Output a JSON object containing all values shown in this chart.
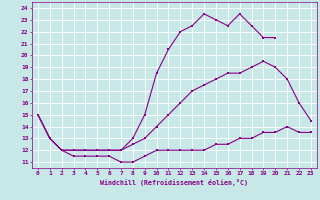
{
  "xlabel": "Windchill (Refroidissement éolien,°C)",
  "bg_color": "#c8e8e8",
  "grid_color": "#aacccc",
  "line_color": "#880088",
  "xlim": [
    -0.5,
    23.5
  ],
  "ylim": [
    10.5,
    24.5
  ],
  "xticks": [
    0,
    1,
    2,
    3,
    4,
    5,
    6,
    7,
    8,
    9,
    10,
    11,
    12,
    13,
    14,
    15,
    16,
    17,
    18,
    19,
    20,
    21,
    22,
    23
  ],
  "yticks": [
    11,
    12,
    13,
    14,
    15,
    16,
    17,
    18,
    19,
    20,
    21,
    22,
    23,
    24
  ],
  "line1_x": [
    0,
    1,
    2,
    3,
    4,
    5,
    6,
    7,
    8,
    9,
    10,
    11,
    12,
    13,
    14,
    15,
    16,
    17,
    18,
    19,
    20,
    21,
    22,
    23
  ],
  "line1_y": [
    15,
    13,
    12,
    11.5,
    11.5,
    11.5,
    11.5,
    11,
    11,
    11.5,
    12,
    12,
    12,
    12,
    12,
    12.5,
    12.5,
    13,
    13,
    13.5,
    13.5,
    14,
    13.5,
    13.5
  ],
  "line2_x": [
    0,
    1,
    2,
    3,
    4,
    5,
    6,
    7,
    8,
    9,
    10,
    11,
    12,
    13,
    14,
    15,
    16,
    17,
    18,
    19,
    20,
    21,
    22,
    23
  ],
  "line2_y": [
    15,
    13,
    12,
    12,
    12,
    12,
    12,
    12,
    12.5,
    13,
    14,
    15,
    16,
    17,
    17.5,
    18,
    18.5,
    18.5,
    19,
    19.5,
    19,
    18,
    16,
    14.5
  ],
  "line3_x": [
    0,
    1,
    2,
    3,
    4,
    5,
    6,
    7,
    8,
    9,
    10,
    11,
    12,
    13,
    14,
    15,
    16,
    17,
    18,
    19,
    20
  ],
  "line3_y": [
    15,
    13,
    12,
    12,
    12,
    12,
    12,
    12,
    13,
    15,
    18.5,
    20.5,
    22,
    22.5,
    23.5,
    23,
    22.5,
    23.5,
    22.5,
    21.5,
    21.5
  ]
}
